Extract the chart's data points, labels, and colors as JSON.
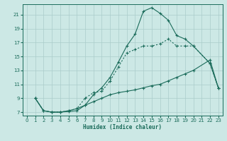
{
  "bg_color": "#cce8e5",
  "grid_color": "#aaccca",
  "line_color": "#1a6b5a",
  "xlabel": "Humidex (Indice chaleur)",
  "xlim": [
    -0.5,
    23.5
  ],
  "ylim": [
    6.5,
    22.5
  ],
  "xticks": [
    0,
    1,
    2,
    3,
    4,
    5,
    6,
    7,
    8,
    9,
    10,
    11,
    12,
    13,
    14,
    15,
    16,
    17,
    18,
    19,
    20,
    21,
    22,
    23
  ],
  "yticks": [
    7,
    9,
    11,
    13,
    15,
    17,
    19,
    21
  ],
  "line1_x": [
    1,
    2,
    3,
    4,
    5,
    6,
    7,
    8,
    9,
    10,
    11,
    12,
    13,
    14,
    15,
    16,
    17,
    18,
    19,
    20,
    22,
    23
  ],
  "line1_y": [
    9.0,
    7.2,
    7.0,
    7.0,
    7.1,
    7.2,
    8.0,
    9.5,
    10.5,
    12.0,
    14.2,
    16.5,
    18.2,
    21.5,
    22.0,
    21.2,
    20.2,
    18.0,
    17.5,
    16.5,
    14.0,
    10.5
  ],
  "line2_x": [
    1,
    2,
    3,
    4,
    5,
    6,
    7,
    8,
    9,
    10,
    11,
    12,
    13,
    14,
    15,
    16,
    17,
    18,
    19,
    20,
    22,
    23
  ],
  "line2_y": [
    9.0,
    7.2,
    7.0,
    7.0,
    7.2,
    7.5,
    9.0,
    9.8,
    10.0,
    11.5,
    13.5,
    15.5,
    16.0,
    16.5,
    16.5,
    16.8,
    17.5,
    16.5,
    16.5,
    16.5,
    14.0,
    10.5
  ],
  "line3_x": [
    1,
    2,
    3,
    4,
    5,
    6,
    7,
    8,
    9,
    10,
    11,
    12,
    13,
    14,
    15,
    16,
    17,
    18,
    19,
    20,
    22,
    23
  ],
  "line3_y": [
    9.0,
    7.2,
    7.0,
    7.0,
    7.2,
    7.5,
    8.0,
    8.5,
    9.0,
    9.5,
    9.8,
    10.0,
    10.2,
    10.5,
    10.8,
    11.0,
    11.5,
    12.0,
    12.5,
    13.0,
    14.5,
    10.5
  ]
}
